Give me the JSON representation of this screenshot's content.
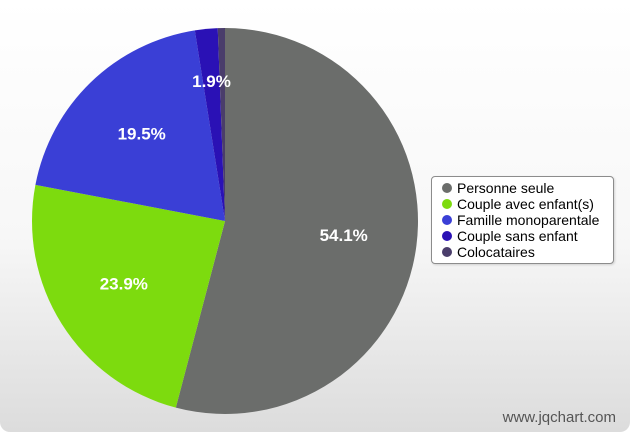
{
  "chart_data": {
    "type": "pie",
    "categories": [
      "Personne seule",
      "Couple avec enfant(s)",
      "Famille monoparentale",
      "Couple sans enfant",
      "Colocataires"
    ],
    "values": [
      54.1,
      23.9,
      19.5,
      1.9,
      0.6
    ],
    "value_labels": [
      "54.1%",
      "23.9%",
      "19.5%",
      "1.9%",
      ""
    ],
    "colors": [
      "#6b6d6b",
      "#7ddb0e",
      "#3a3fd6",
      "#2a11b5",
      "#4a3d6b"
    ],
    "legend_placement": "right",
    "title": ""
  },
  "watermark": "www.jqchart.com"
}
